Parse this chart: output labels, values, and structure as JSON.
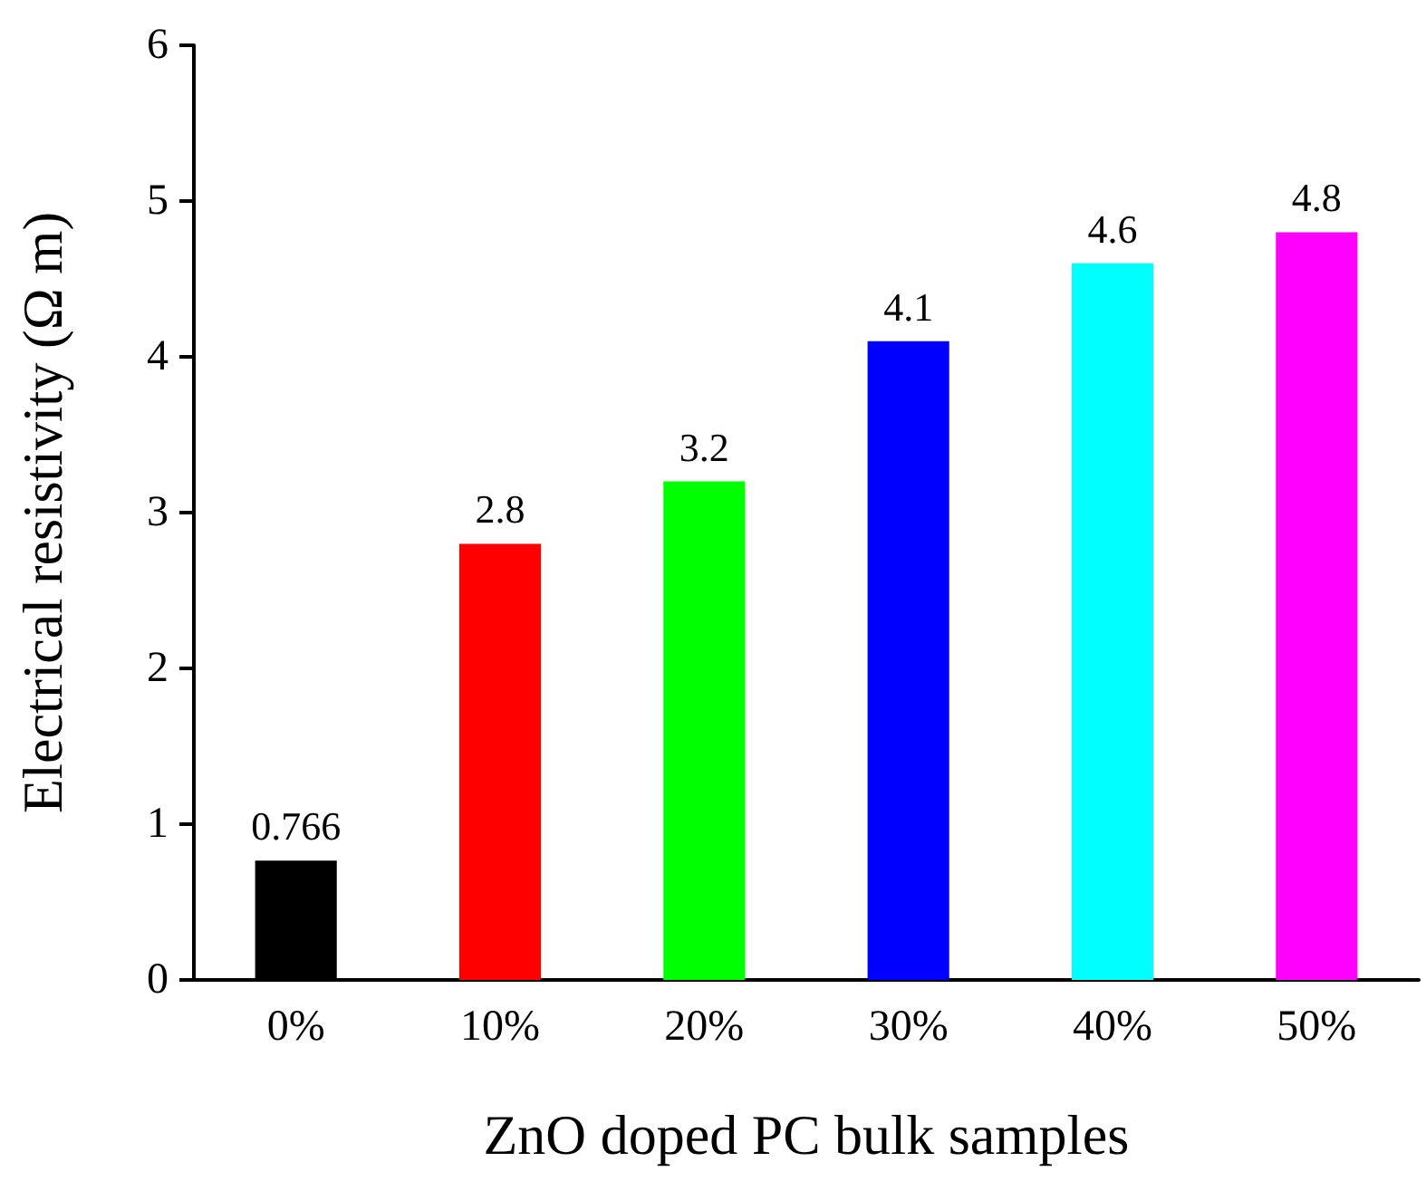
{
  "chart_data": {
    "type": "bar",
    "xlabel": "ZnO doped PC bulk samples",
    "ylabel": "Electrical resistivity (Ω m)",
    "categories": [
      "0%",
      "10%",
      "20%",
      "30%",
      "40%",
      "50%"
    ],
    "values": [
      0.766,
      2.8,
      3.2,
      4.1,
      4.6,
      4.8
    ],
    "colors": [
      "#000000",
      "#ff0000",
      "#00ff00",
      "#0000ff",
      "#00ffff",
      "#ff00ff"
    ],
    "ylim": [
      0,
      6
    ],
    "yticks": [
      0,
      1,
      2,
      3,
      4,
      5,
      6
    ],
    "grid": false,
    "data_labels": true
  }
}
